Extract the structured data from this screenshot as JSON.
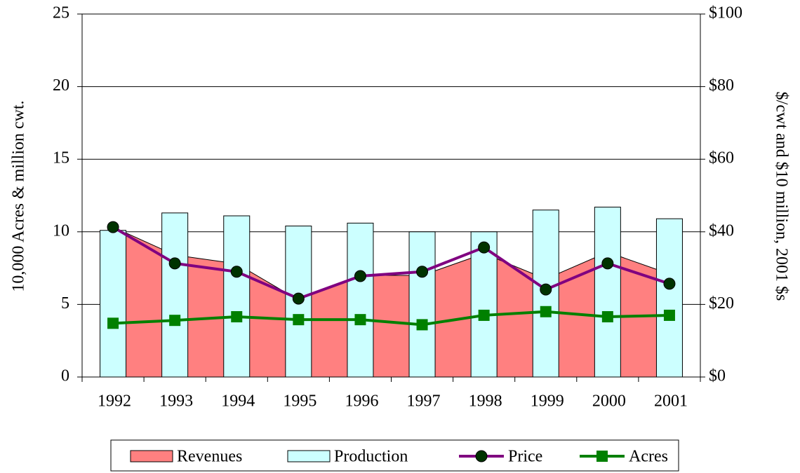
{
  "chart_data": {
    "type": "combo",
    "categories": [
      "1992",
      "1993",
      "1994",
      "1995",
      "1996",
      "1997",
      "1998",
      "1999",
      "2000",
      "2001"
    ],
    "y_label": "10,000 Acres & million cwt.",
    "y2_label": "$/cwt and $10 million, 2001 $s",
    "ylim": [
      0,
      25
    ],
    "yticks": [
      0,
      5,
      10,
      15,
      20,
      25
    ],
    "y2lim": [
      0,
      100
    ],
    "y2ticks": [
      {
        "value": 0,
        "label": "$0"
      },
      {
        "value": 20,
        "label": "$20"
      },
      {
        "value": 40,
        "label": "$40"
      },
      {
        "value": 60,
        "label": "$60"
      },
      {
        "value": 80,
        "label": "$80"
      },
      {
        "value": 100,
        "label": "$100"
      }
    ],
    "grid": true,
    "legend": "bottom",
    "series": [
      {
        "name": "Revenues",
        "type": "area",
        "axis": "y2",
        "color": "#ff8080",
        "values": [
          41.3,
          33.6,
          31.2,
          21.2,
          28,
          28,
          34,
          27,
          34.4,
          28.4
        ]
      },
      {
        "name": "Production",
        "type": "bar",
        "color": "#ccffff",
        "values": [
          10.1,
          11.3,
          11.1,
          10.4,
          10.6,
          10.0,
          10.0,
          11.5,
          11.7,
          10.9
        ]
      },
      {
        "name": "Price",
        "type": "line",
        "axis": "y2",
        "color": "#800080",
        "marker": "circle",
        "marker_color": "#003300",
        "values": [
          41.3,
          31.3,
          29,
          21.6,
          27.8,
          29,
          35.7,
          24.1,
          31.3,
          25.7
        ]
      },
      {
        "name": "Acres",
        "type": "line",
        "color": "#008000",
        "marker": "square",
        "marker_color": "#008000",
        "values": [
          3.7,
          3.9,
          4.15,
          3.95,
          3.95,
          3.6,
          4.25,
          4.5,
          4.15,
          4.25
        ]
      }
    ]
  }
}
